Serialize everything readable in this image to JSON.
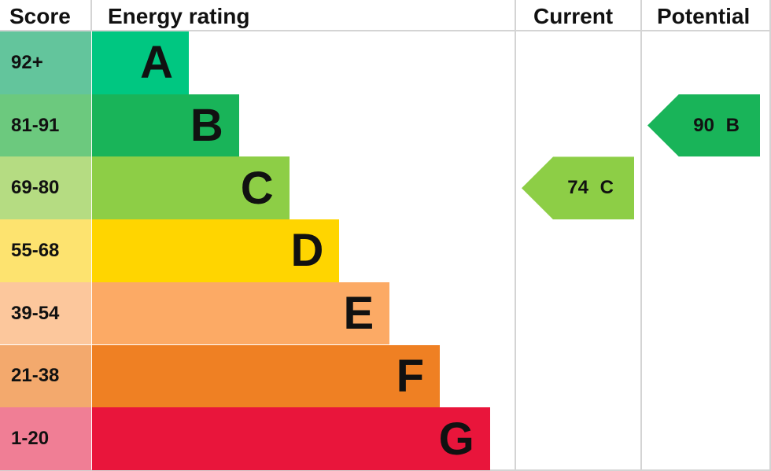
{
  "chart_data": {
    "type": "table",
    "headers": {
      "score": "Score",
      "rating": "Energy rating",
      "current": "Current",
      "potential": "Potential"
    },
    "bands": [
      {
        "letter": "A",
        "range": "92+",
        "color": "#00c781",
        "score_color": "#63c59c"
      },
      {
        "letter": "B",
        "range": "81-91",
        "color": "#19b459",
        "score_color": "#6cc97e"
      },
      {
        "letter": "C",
        "range": "69-80",
        "color": "#8dce46",
        "score_color": "#b5dc82"
      },
      {
        "letter": "D",
        "range": "55-68",
        "color": "#ffd500",
        "score_color": "#fde36f"
      },
      {
        "letter": "E",
        "range": "39-54",
        "color": "#fcaa65",
        "score_color": "#fcc79c"
      },
      {
        "letter": "F",
        "range": "21-38",
        "color": "#ef8023",
        "score_color": "#f3a96d"
      },
      {
        "letter": "G",
        "range": "1-20",
        "color": "#e9153b",
        "score_color": "#f07e95"
      }
    ],
    "current": {
      "value": 74,
      "band": "C",
      "label": "74 C",
      "color": "#8dce46"
    },
    "potential": {
      "value": 90,
      "band": "B",
      "label": "90 B",
      "color": "#19b459"
    }
  }
}
